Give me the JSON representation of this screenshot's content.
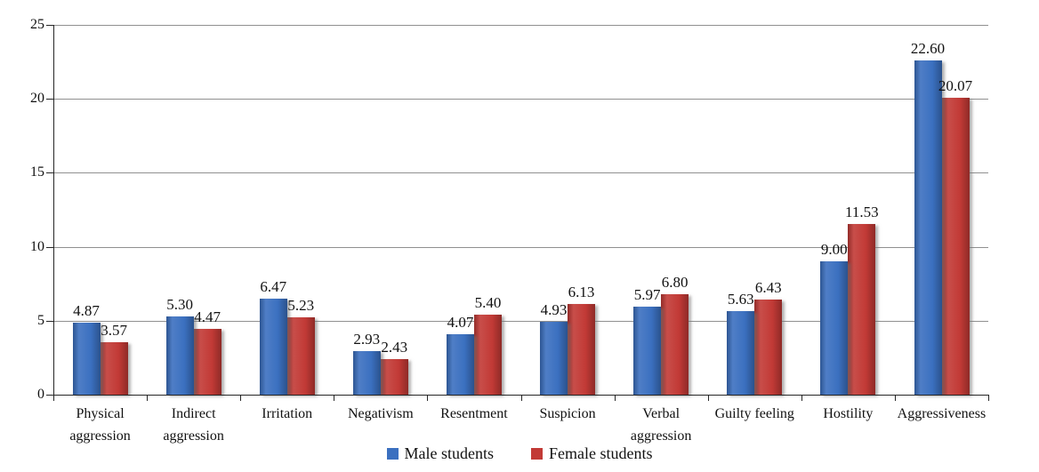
{
  "chart_data": {
    "type": "bar",
    "categories": [
      "Physical aggression",
      "Indirect aggression",
      "Irritation",
      "Negativism",
      "Resentment",
      "Suspicion",
      "Verbal aggression",
      "Guilty feeling",
      "Hostility",
      "Aggressiveness"
    ],
    "series": [
      {
        "name": "Male students",
        "color": "#3B70C0",
        "values": [
          4.87,
          5.3,
          6.47,
          2.93,
          4.07,
          4.93,
          5.97,
          5.63,
          9.0,
          22.6
        ]
      },
      {
        "name": "Female students",
        "color": "#C23A36",
        "values": [
          3.57,
          4.47,
          5.23,
          2.43,
          5.4,
          6.13,
          6.8,
          6.43,
          11.53,
          20.07
        ]
      }
    ],
    "ylim": [
      0,
      25
    ],
    "ytick_step": 5,
    "ytick_labels": [
      "0",
      "5",
      "10",
      "15",
      "20",
      "25"
    ],
    "xlabel": "",
    "ylabel": "",
    "grid": true,
    "legend_position": "bottom",
    "value_label_decimals": 2
  },
  "colors": {
    "gridline": "#909090",
    "axis": "#262626",
    "text": "#111111"
  }
}
